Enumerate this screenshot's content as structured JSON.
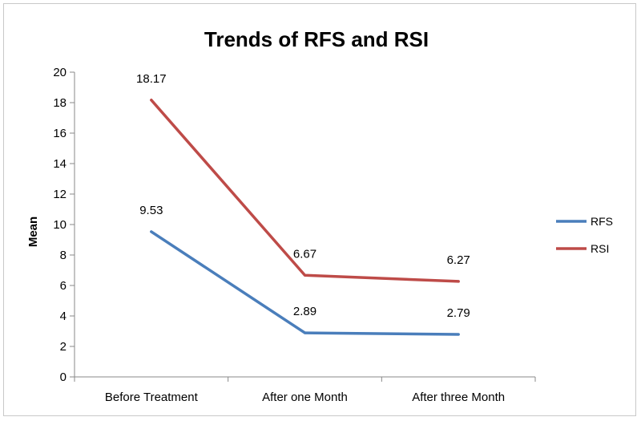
{
  "chart_data": {
    "type": "line",
    "title": "Trends of RFS and RSI",
    "xlabel": "",
    "ylabel": "Mean",
    "ylim": [
      0,
      20
    ],
    "yticks": [
      0,
      2,
      4,
      6,
      8,
      10,
      12,
      14,
      16,
      18,
      20
    ],
    "categories": [
      "Before Treatment",
      "After one Month",
      "After three Month"
    ],
    "series": [
      {
        "name": "RFS",
        "color": "#4a7ebb",
        "values": [
          9.53,
          2.89,
          2.79
        ],
        "labels": [
          "9.53",
          "2.89",
          "2.79"
        ]
      },
      {
        "name": "RSI",
        "color": "#be4b48",
        "values": [
          18.17,
          6.67,
          6.27
        ],
        "labels": [
          "18.17",
          "6.67",
          "6.27"
        ]
      }
    ],
    "grid": false,
    "legend": "right"
  }
}
